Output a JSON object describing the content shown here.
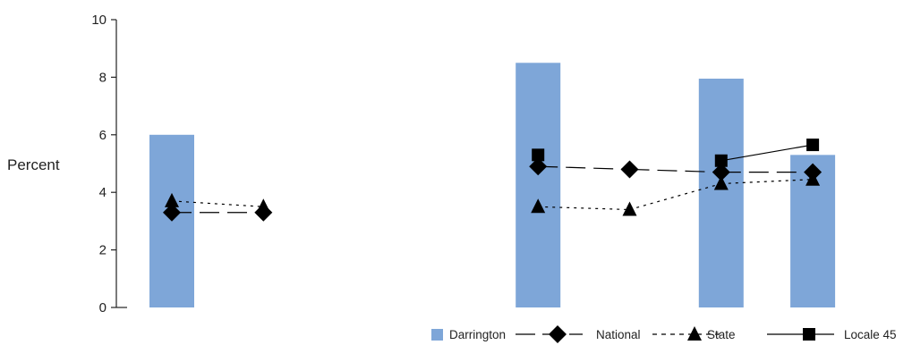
{
  "chart_data": {
    "type": "bar",
    "ylabel": "Percent",
    "ylim": [
      0,
      10
    ],
    "yticks": [
      0,
      2,
      4,
      6,
      8,
      10
    ],
    "grid": false,
    "legend_position": "bottom-right",
    "categories": [
      "",
      "",
      "",
      "",
      "",
      "",
      "",
      ""
    ],
    "bar_series": {
      "name": "Darrington",
      "color": "#7ea6d8",
      "values": [
        6.0,
        null,
        null,
        null,
        8.5,
        null,
        7.95,
        5.3
      ]
    },
    "line_series": [
      {
        "name": "National",
        "marker": "diamond",
        "line_style": "long-dash",
        "values": [
          3.3,
          3.3,
          null,
          null,
          4.9,
          4.8,
          4.7,
          4.7
        ]
      },
      {
        "name": "State",
        "marker": "triangle",
        "line_style": "dotted",
        "values": [
          3.7,
          3.5,
          null,
          null,
          3.5,
          3.4,
          4.3,
          4.45
        ]
      },
      {
        "name": "Locale 45",
        "marker": "square",
        "line_style": "solid",
        "values": [
          null,
          null,
          null,
          null,
          5.3,
          null,
          5.1,
          5.65
        ]
      }
    ]
  }
}
